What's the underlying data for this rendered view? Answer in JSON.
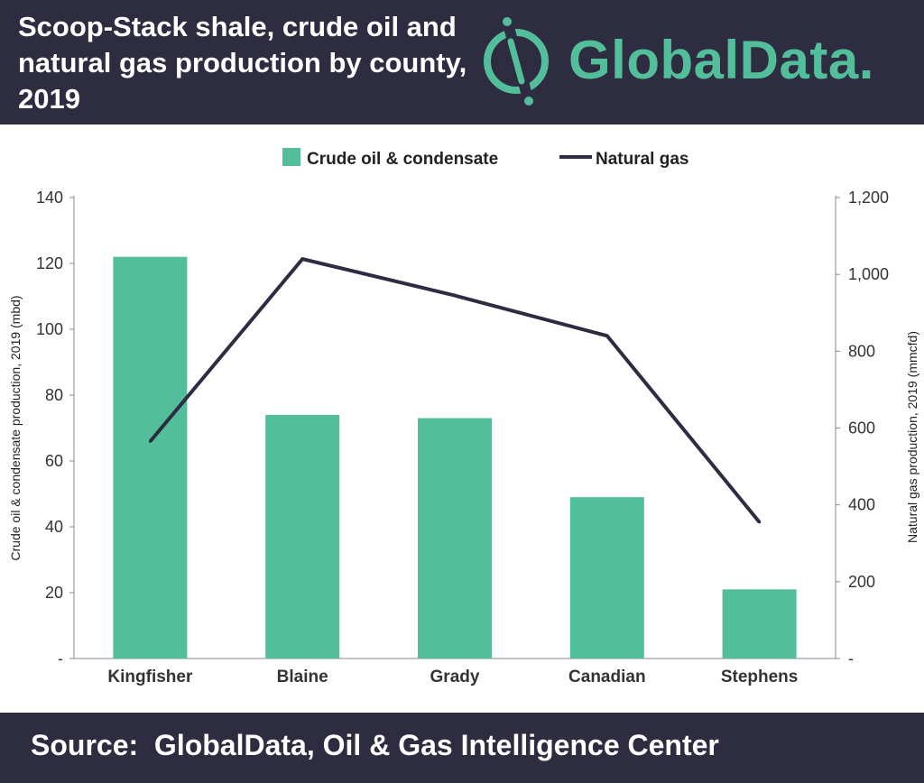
{
  "header": {
    "title": "Scoop-Stack shale, crude oil and natural gas production by county, 2019",
    "brand": "GlobalData."
  },
  "footer": {
    "source": "Source:  GlobalData, Oil & Gas Intelligence Center"
  },
  "colors": {
    "header_bg": "#2e2c40",
    "bar": "#52be9a",
    "line": "#2e2c40",
    "brand": "#52be9a"
  },
  "chart_data": {
    "type": "bar",
    "title": "Scoop-Stack shale, crude oil and natural gas production by county, 2019",
    "categories": [
      "Kingfisher",
      "Blaine",
      "Grady",
      "Canadian",
      "Stephens"
    ],
    "series": [
      {
        "name": "Crude oil & condensate",
        "type": "bar",
        "axis": "left",
        "values": [
          122,
          74,
          73,
          49,
          21
        ]
      },
      {
        "name": "Natural gas",
        "type": "line",
        "axis": "right",
        "values": [
          565,
          1040,
          945,
          840,
          355
        ]
      }
    ],
    "ylabel": "Crude oil & condensate production, 2019 (mbd)",
    "ylabel_right": "Natural gas production, 2019 (mmcfd)",
    "ylim": [
      0,
      140
    ],
    "ylim_right": [
      0,
      1200
    ],
    "yticks": [
      "-",
      "20",
      "40",
      "60",
      "80",
      "100",
      "120",
      "140"
    ],
    "yticks_right": [
      "-",
      "200",
      "400",
      "600",
      "800",
      "1,000",
      "1,200"
    ],
    "legend_position": "top-center",
    "grid": false
  }
}
